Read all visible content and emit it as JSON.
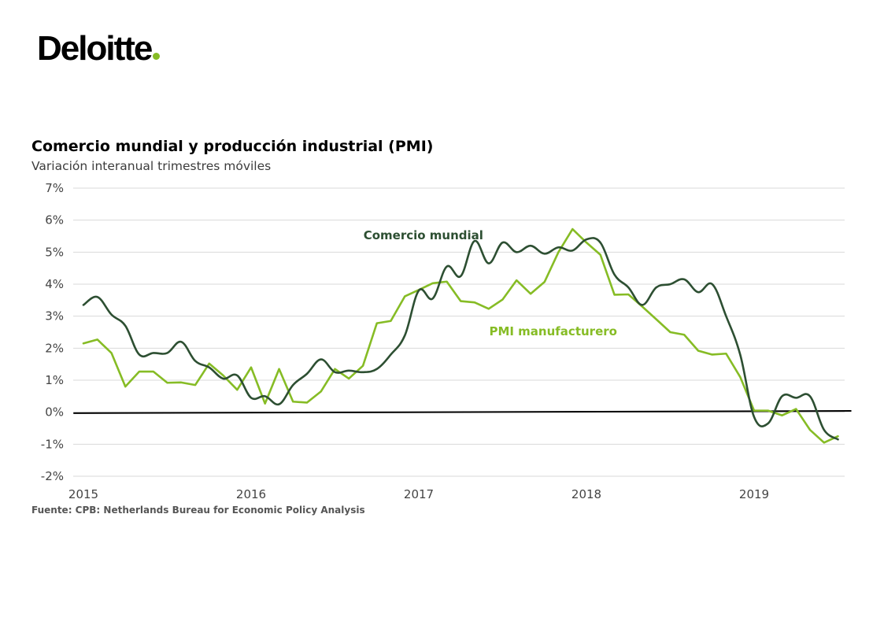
{
  "logo": {
    "text": "Deloitte",
    "dot_color": "#86bc25"
  },
  "colors": {
    "comercio": "#2d4f32",
    "pmi": "#86bc25",
    "zero_line": "#000000",
    "grid": "#d9d9d9"
  },
  "chart_data": {
    "type": "line",
    "title": "Comercio mundial y producción industrial (PMI)",
    "subtitle": "Variación interanual trimestres móviles",
    "source": "Fuente: CPB: Netherlands Bureau for Economic Policy Analysis",
    "ylim": [
      -2,
      7
    ],
    "yticks": [
      7,
      6,
      5,
      4,
      3,
      2,
      1,
      0,
      -1,
      -2
    ],
    "ytick_labels": [
      "7%",
      "6%",
      "5%",
      "4%",
      "3%",
      "2%",
      "1%",
      "0%",
      "-1%",
      "-2%"
    ],
    "xlim": [
      2015.0,
      2019.58
    ],
    "xticks": [
      2015,
      2016,
      2017,
      2018,
      2019
    ],
    "xtick_labels": [
      "2015",
      "2016",
      "2017",
      "2018",
      "2019"
    ],
    "grid": true,
    "series": [
      {
        "name": "Comercio mundial",
        "color": "#2d4f32",
        "smooth": true,
        "points": [
          [
            2015.0,
            3.35
          ],
          [
            2015.083,
            3.6
          ],
          [
            2015.167,
            3.05
          ],
          [
            2015.25,
            2.7
          ],
          [
            2015.333,
            1.8
          ],
          [
            2015.417,
            1.85
          ],
          [
            2015.5,
            1.85
          ],
          [
            2015.583,
            2.2
          ],
          [
            2015.667,
            1.6
          ],
          [
            2015.75,
            1.4
          ],
          [
            2015.833,
            1.05
          ],
          [
            2015.917,
            1.15
          ],
          [
            2016.0,
            0.45
          ],
          [
            2016.083,
            0.5
          ],
          [
            2016.167,
            0.25
          ],
          [
            2016.25,
            0.85
          ],
          [
            2016.333,
            1.2
          ],
          [
            2016.417,
            1.65
          ],
          [
            2016.5,
            1.25
          ],
          [
            2016.583,
            1.3
          ],
          [
            2016.667,
            1.25
          ],
          [
            2016.75,
            1.35
          ],
          [
            2016.833,
            1.8
          ],
          [
            2016.917,
            2.4
          ],
          [
            2017.0,
            3.8
          ],
          [
            2017.083,
            3.55
          ],
          [
            2017.167,
            4.55
          ],
          [
            2017.25,
            4.25
          ],
          [
            2017.333,
            5.35
          ],
          [
            2017.417,
            4.65
          ],
          [
            2017.5,
            5.3
          ],
          [
            2017.583,
            5.0
          ],
          [
            2017.667,
            5.2
          ],
          [
            2017.75,
            4.95
          ],
          [
            2017.833,
            5.15
          ],
          [
            2017.917,
            5.05
          ],
          [
            2018.0,
            5.4
          ],
          [
            2018.083,
            5.3
          ],
          [
            2018.167,
            4.3
          ],
          [
            2018.25,
            3.9
          ],
          [
            2018.333,
            3.35
          ],
          [
            2018.417,
            3.9
          ],
          [
            2018.5,
            4.0
          ],
          [
            2018.583,
            4.15
          ],
          [
            2018.667,
            3.75
          ],
          [
            2018.75,
            4.0
          ],
          [
            2018.833,
            3.0
          ],
          [
            2018.917,
            1.8
          ],
          [
            2019.0,
            -0.15
          ],
          [
            2019.083,
            -0.35
          ],
          [
            2019.167,
            0.5
          ],
          [
            2019.25,
            0.45
          ],
          [
            2019.333,
            0.5
          ],
          [
            2019.417,
            -0.55
          ],
          [
            2019.5,
            -0.85
          ]
        ]
      },
      {
        "name": "PMI manufacturero",
        "color": "#86bc25",
        "smooth": false,
        "points": [
          [
            2015.0,
            2.15
          ],
          [
            2015.083,
            2.27
          ],
          [
            2015.167,
            1.85
          ],
          [
            2015.25,
            0.8
          ],
          [
            2015.333,
            1.27
          ],
          [
            2015.417,
            1.27
          ],
          [
            2015.5,
            0.92
          ],
          [
            2015.583,
            0.93
          ],
          [
            2015.667,
            0.85
          ],
          [
            2015.75,
            1.52
          ],
          [
            2015.833,
            1.15
          ],
          [
            2015.917,
            0.7
          ],
          [
            2016.0,
            1.4
          ],
          [
            2016.083,
            0.27
          ],
          [
            2016.167,
            1.35
          ],
          [
            2016.25,
            0.33
          ],
          [
            2016.333,
            0.3
          ],
          [
            2016.417,
            0.65
          ],
          [
            2016.5,
            1.35
          ],
          [
            2016.583,
            1.05
          ],
          [
            2016.667,
            1.45
          ],
          [
            2016.75,
            2.78
          ],
          [
            2016.833,
            2.85
          ],
          [
            2016.917,
            3.62
          ],
          [
            2017.0,
            3.82
          ],
          [
            2017.083,
            4.03
          ],
          [
            2017.167,
            4.08
          ],
          [
            2017.25,
            3.47
          ],
          [
            2017.333,
            3.43
          ],
          [
            2017.417,
            3.23
          ],
          [
            2017.5,
            3.52
          ],
          [
            2017.583,
            4.12
          ],
          [
            2017.667,
            3.7
          ],
          [
            2017.75,
            4.07
          ],
          [
            2017.833,
            5.0
          ],
          [
            2017.917,
            5.72
          ],
          [
            2018.0,
            5.3
          ],
          [
            2018.083,
            4.92
          ],
          [
            2018.167,
            3.67
          ],
          [
            2018.25,
            3.68
          ],
          [
            2018.333,
            3.3
          ],
          [
            2018.417,
            2.9
          ],
          [
            2018.5,
            2.5
          ],
          [
            2018.583,
            2.42
          ],
          [
            2018.667,
            1.92
          ],
          [
            2018.75,
            1.8
          ],
          [
            2018.833,
            1.83
          ],
          [
            2018.917,
            1.1
          ],
          [
            2019.0,
            0.05
          ],
          [
            2019.083,
            0.05
          ],
          [
            2019.167,
            -0.1
          ],
          [
            2019.25,
            0.1
          ],
          [
            2019.333,
            -0.55
          ],
          [
            2019.417,
            -0.95
          ],
          [
            2019.5,
            -0.75
          ]
        ]
      }
    ],
    "baseline": {
      "points": [
        [
          2014.94,
          -0.03
        ],
        [
          2019.58,
          0.04
        ]
      ]
    },
    "annotations": [
      {
        "text": "Comercio mundial",
        "series": "Comercio mundial",
        "x": 2016.67,
        "y": 5.4
      },
      {
        "text": "PMI manufacturero",
        "series": "PMI manufacturero",
        "x": 2017.42,
        "y": 2.4
      }
    ]
  }
}
